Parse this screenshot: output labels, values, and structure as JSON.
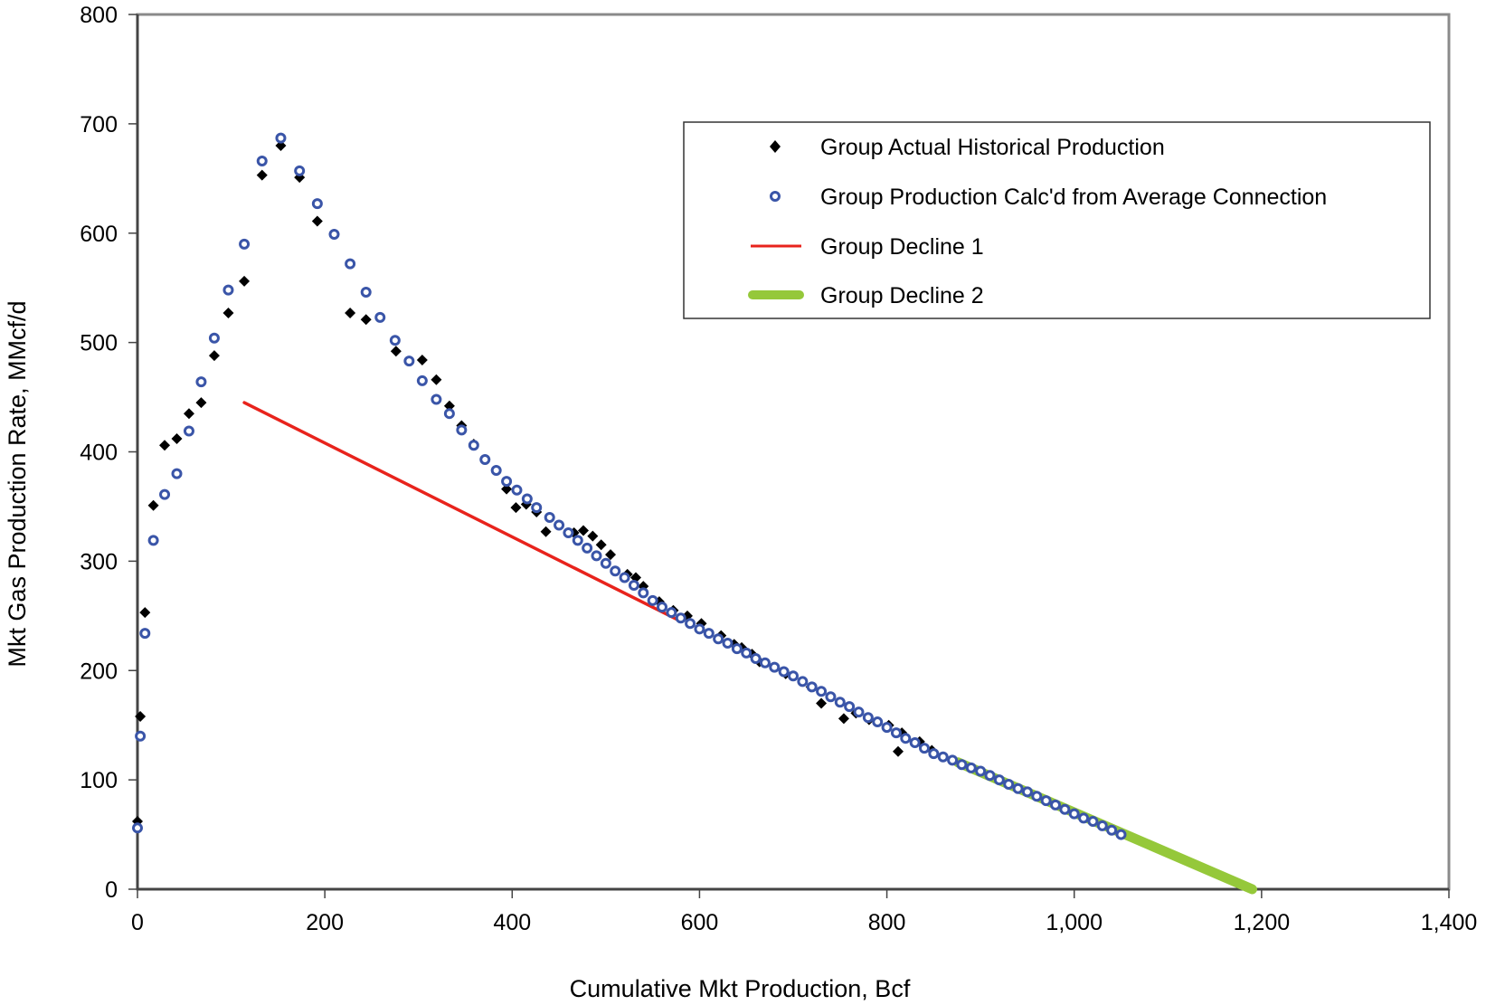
{
  "chart_data": {
    "type": "scatter",
    "title": "",
    "xlabel": "Cumulative Mkt Production, Bcf",
    "ylabel": "Mkt Gas Production Rate, MMcf/d",
    "xlim": [
      0,
      1400
    ],
    "ylim": [
      0,
      800
    ],
    "xticks": [
      "0",
      "200",
      "400",
      "600",
      "800",
      "1,000",
      "1,200",
      "1,400"
    ],
    "yticks": [
      "0",
      "100",
      "200",
      "300",
      "400",
      "500",
      "600",
      "700",
      "800"
    ],
    "grid": false,
    "legend_position": "top-right",
    "series": [
      {
        "name": "Group Actual Historical Production",
        "kind": "scatter",
        "marker": "diamond",
        "color": "#000000",
        "points": [
          [
            0,
            62
          ],
          [
            3,
            158
          ],
          [
            8,
            253
          ],
          [
            17,
            351
          ],
          [
            29,
            406
          ],
          [
            42,
            412
          ],
          [
            55,
            435
          ],
          [
            68,
            445
          ],
          [
            82,
            488
          ],
          [
            97,
            527
          ],
          [
            114,
            556
          ],
          [
            133,
            653
          ],
          [
            153,
            680
          ],
          [
            173,
            651
          ],
          [
            192,
            611
          ],
          [
            210,
            599
          ],
          [
            227,
            527
          ],
          [
            244,
            521
          ],
          [
            276,
            492
          ],
          [
            304,
            484
          ],
          [
            319,
            466
          ],
          [
            333,
            442
          ],
          [
            346,
            424
          ],
          [
            359,
            407
          ],
          [
            394,
            366
          ],
          [
            404,
            349
          ],
          [
            415,
            352
          ],
          [
            426,
            345
          ],
          [
            436,
            327
          ],
          [
            466,
            326
          ],
          [
            476,
            328
          ],
          [
            486,
            323
          ],
          [
            495,
            315
          ],
          [
            505,
            306
          ],
          [
            523,
            288
          ],
          [
            532,
            285
          ],
          [
            540,
            277
          ],
          [
            557,
            263
          ],
          [
            572,
            255
          ],
          [
            587,
            250
          ],
          [
            602,
            243
          ],
          [
            623,
            232
          ],
          [
            637,
            224
          ],
          [
            645,
            221
          ],
          [
            656,
            215
          ],
          [
            664,
            208
          ],
          [
            692,
            197
          ],
          [
            719,
            185
          ],
          [
            730,
            170
          ],
          [
            754,
            156
          ],
          [
            767,
            161
          ],
          [
            781,
            155
          ],
          [
            802,
            150
          ],
          [
            812,
            126
          ],
          [
            816,
            143
          ],
          [
            835,
            135
          ],
          [
            848,
            127
          ]
        ]
      },
      {
        "name": "Group Production Calc'd from Average Connection",
        "kind": "scatter",
        "marker": "open-circle",
        "color": "#3a55a8",
        "points": [
          [
            0,
            56
          ],
          [
            3,
            140
          ],
          [
            8,
            234
          ],
          [
            17,
            319
          ],
          [
            29,
            361
          ],
          [
            42,
            380
          ],
          [
            55,
            419
          ],
          [
            68,
            464
          ],
          [
            82,
            504
          ],
          [
            97,
            548
          ],
          [
            114,
            590
          ],
          [
            133,
            666
          ],
          [
            153,
            687
          ],
          [
            173,
            657
          ],
          [
            192,
            627
          ],
          [
            210,
            599
          ],
          [
            227,
            572
          ],
          [
            244,
            546
          ],
          [
            259,
            523
          ],
          [
            275,
            502
          ],
          [
            290,
            483
          ],
          [
            304,
            465
          ],
          [
            319,
            448
          ],
          [
            333,
            435
          ],
          [
            346,
            420
          ],
          [
            359,
            406
          ],
          [
            371,
            393
          ],
          [
            383,
            383
          ],
          [
            394,
            373
          ],
          [
            405,
            365
          ],
          [
            416,
            357
          ],
          [
            426,
            349
          ],
          [
            440,
            340
          ],
          [
            450,
            333
          ],
          [
            460,
            326
          ],
          [
            470,
            319
          ],
          [
            480,
            312
          ],
          [
            490,
            305
          ],
          [
            500,
            298
          ],
          [
            510,
            291
          ],
          [
            520,
            285
          ],
          [
            530,
            278
          ],
          [
            540,
            271
          ],
          [
            550,
            264
          ],
          [
            560,
            258
          ],
          [
            570,
            253
          ],
          [
            580,
            248
          ],
          [
            590,
            243
          ],
          [
            600,
            238
          ],
          [
            610,
            234
          ],
          [
            620,
            229
          ],
          [
            630,
            225
          ],
          [
            640,
            220
          ],
          [
            650,
            216
          ],
          [
            660,
            211
          ],
          [
            670,
            207
          ],
          [
            680,
            203
          ],
          [
            690,
            199
          ],
          [
            700,
            195
          ],
          [
            710,
            190
          ],
          [
            720,
            185
          ],
          [
            730,
            181
          ],
          [
            740,
            176
          ],
          [
            750,
            171
          ],
          [
            760,
            167
          ],
          [
            770,
            162
          ],
          [
            780,
            157
          ],
          [
            790,
            153
          ],
          [
            800,
            148
          ],
          [
            810,
            143
          ],
          [
            820,
            138
          ],
          [
            830,
            134
          ],
          [
            840,
            129
          ],
          [
            850,
            124
          ],
          [
            860,
            121
          ],
          [
            870,
            118
          ],
          [
            880,
            114
          ],
          [
            890,
            111
          ],
          [
            900,
            108
          ],
          [
            910,
            104
          ],
          [
            920,
            100
          ],
          [
            930,
            96
          ],
          [
            940,
            92
          ],
          [
            950,
            89
          ],
          [
            960,
            85
          ],
          [
            970,
            81
          ],
          [
            980,
            77
          ],
          [
            990,
            73
          ],
          [
            1000,
            69
          ],
          [
            1010,
            65
          ],
          [
            1020,
            62
          ],
          [
            1030,
            58
          ],
          [
            1040,
            54
          ],
          [
            1050,
            50
          ]
        ]
      },
      {
        "name": "Group Decline 1",
        "kind": "line",
        "color": "#e8231c",
        "points": [
          [
            114,
            445
          ],
          [
            580,
            245
          ]
        ]
      },
      {
        "name": "Group Decline 2",
        "kind": "line",
        "color": "#95c83a",
        "points": [
          [
            876,
            116
          ],
          [
            1190,
            0
          ]
        ]
      }
    ]
  }
}
